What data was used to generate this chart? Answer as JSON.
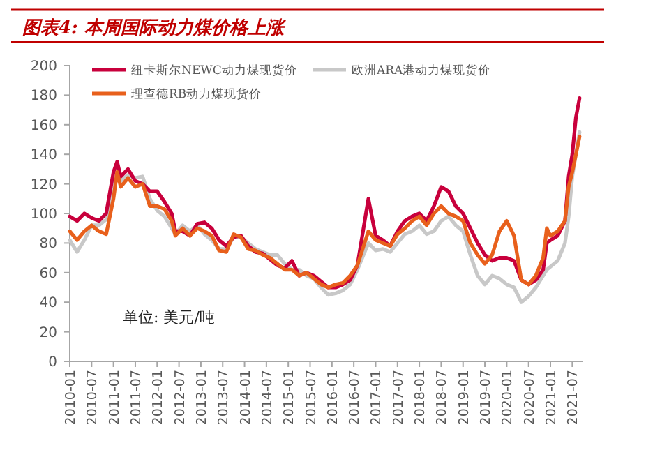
{
  "chart_data": {
    "type": "line",
    "title": "图表4: 本周国际动力煤价格上涨",
    "annotations": [
      "单位:  美元/吨"
    ],
    "x": [
      "2010-01",
      "2010-03",
      "2010-05",
      "2010-07",
      "2010-09",
      "2010-11",
      "2011-01",
      "2011-02",
      "2011-03",
      "2011-05",
      "2011-07",
      "2011-09",
      "2011-11",
      "2012-01",
      "2012-03",
      "2012-05",
      "2012-06",
      "2012-08",
      "2012-10",
      "2012-12",
      "2013-02",
      "2013-04",
      "2013-06",
      "2013-08",
      "2013-10",
      "2013-12",
      "2014-02",
      "2014-04",
      "2014-06",
      "2014-08",
      "2014-10",
      "2014-12",
      "2015-02",
      "2015-04",
      "2015-06",
      "2015-08",
      "2015-10",
      "2015-12",
      "2016-02",
      "2016-04",
      "2016-06",
      "2016-08",
      "2016-11",
      "2017-01",
      "2017-03",
      "2017-05",
      "2017-07",
      "2017-09",
      "2017-11",
      "2018-01",
      "2018-03",
      "2018-05",
      "2018-07",
      "2018-09",
      "2018-11",
      "2019-01",
      "2019-03",
      "2019-05",
      "2019-07",
      "2019-09",
      "2019-11",
      "2020-01",
      "2020-03",
      "2020-05",
      "2020-07",
      "2020-09",
      "2020-11",
      "2020-12",
      "2021-01",
      "2021-03",
      "2021-05",
      "2021-06",
      "2021-07",
      "2021-08",
      "2021-09"
    ],
    "series": [
      {
        "name": "纽卡斯尔NEWC动力煤现货价",
        "color": "#c8003c",
        "values": [
          98,
          95,
          100,
          97,
          95,
          100,
          128,
          135,
          125,
          130,
          122,
          120,
          115,
          115,
          108,
          100,
          88,
          88,
          85,
          93,
          94,
          90,
          82,
          78,
          84,
          85,
          78,
          74,
          73,
          69,
          65,
          63,
          68,
          58,
          60,
          58,
          54,
          50,
          50,
          52,
          55,
          65,
          110,
          85,
          82,
          78,
          88,
          95,
          98,
          100,
          95,
          105,
          118,
          115,
          105,
          100,
          90,
          80,
          72,
          68,
          70,
          70,
          68,
          55,
          52,
          55,
          62,
          80,
          82,
          85,
          95,
          125,
          140,
          165,
          178
        ]
      },
      {
        "name": "欧洲ARA港动力煤现货价",
        "color": "#c8c8c8",
        "values": [
          82,
          74,
          82,
          92,
          92,
          96,
          118,
          128,
          122,
          126,
          124,
          125,
          110,
          102,
          98,
          90,
          86,
          92,
          88,
          92,
          86,
          82,
          76,
          76,
          84,
          84,
          80,
          76,
          74,
          72,
          72,
          66,
          62,
          62,
          58,
          56,
          50,
          45,
          46,
          48,
          52,
          62,
          80,
          75,
          76,
          74,
          80,
          86,
          88,
          92,
          86,
          88,
          95,
          98,
          92,
          88,
          72,
          58,
          52,
          58,
          56,
          52,
          50,
          40,
          44,
          50,
          58,
          62,
          64,
          68,
          80,
          98,
          125,
          140,
          155
        ]
      },
      {
        "name": "理查德RB动力煤现货价",
        "color": "#e8601c",
        "values": [
          88,
          82,
          88,
          92,
          88,
          86,
          110,
          128,
          118,
          124,
          118,
          120,
          105,
          105,
          103,
          95,
          85,
          90,
          85,
          90,
          88,
          85,
          75,
          74,
          86,
          84,
          76,
          75,
          72,
          70,
          66,
          62,
          62,
          58,
          60,
          56,
          52,
          50,
          52,
          53,
          58,
          65,
          88,
          82,
          80,
          78,
          86,
          90,
          95,
          98,
          92,
          100,
          105,
          100,
          98,
          95,
          80,
          72,
          66,
          72,
          88,
          95,
          85,
          55,
          52,
          58,
          70,
          90,
          85,
          88,
          95,
          118,
          128,
          140,
          152
        ]
      }
    ],
    "xlim": [
      "2010-01",
      "2021-10"
    ],
    "xticks": [
      "2010-01",
      "2010-07",
      "2011-01",
      "2011-07",
      "2012-01",
      "2012-07",
      "2013-01",
      "2013-07",
      "2014-01",
      "2014-07",
      "2015-01",
      "2015-07",
      "2016-01",
      "2016-07",
      "2017-01",
      "2017-07",
      "2018-01",
      "2018-07",
      "2019-01",
      "2019-07",
      "2020-01",
      "2020-07",
      "2021-01",
      "2021-07"
    ],
    "ylim": [
      0,
      200
    ],
    "yticks": [
      0,
      20,
      40,
      60,
      80,
      100,
      120,
      140,
      160,
      180,
      200
    ],
    "grid": false,
    "legend": "top left",
    "marker": "none",
    "line_style": "solid"
  }
}
